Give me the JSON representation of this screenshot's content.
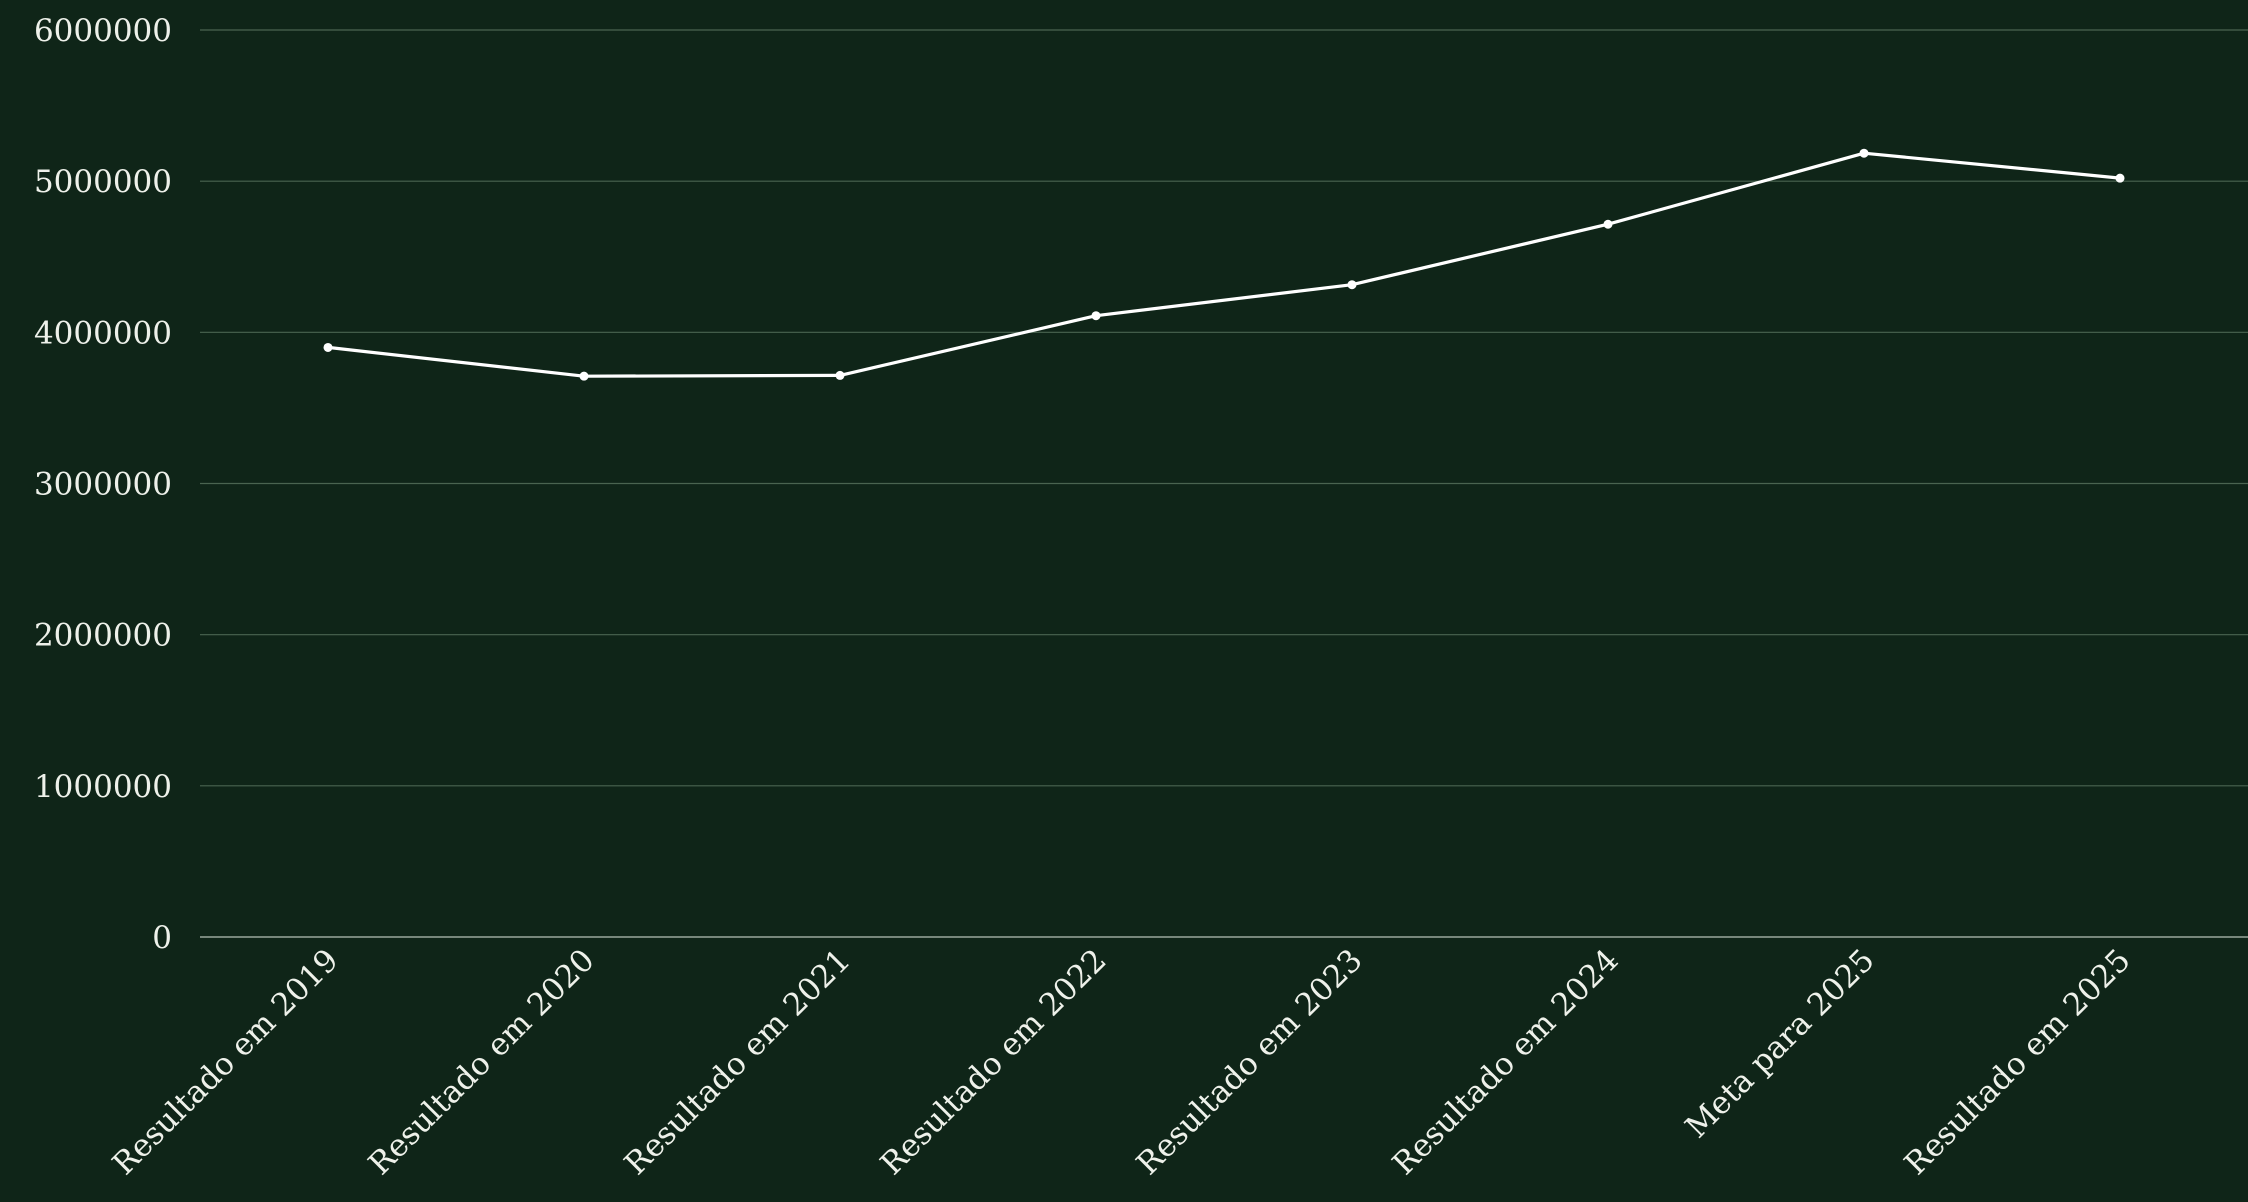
{
  "chart_data": {
    "type": "line",
    "title": "",
    "xlabel": "",
    "ylabel": "",
    "categories": [
      "Resultado em 2019",
      "Resultado em 2020",
      "Resultado em 2021",
      "Resultado em 2022",
      "Resultado em 2023",
      "Resultado em 2024",
      "Meta para 2025",
      "Resultado em 2025"
    ],
    "series": [
      {
        "values": [
          3900000,
          3710000,
          3715000,
          4110000,
          4315000,
          4715000,
          5185000,
          5020000
        ]
      }
    ],
    "ylim": [
      0,
      6000000
    ],
    "yticks": [
      "0",
      "1000000",
      "2000000",
      "3000000",
      "4000000",
      "5000000",
      "6000000"
    ],
    "grid": true,
    "legend": "none"
  },
  "colors": {
    "background": "#0f2518",
    "gridline": "#4a6450",
    "axis_line": "#9aa89c",
    "series_line": "#ffffff",
    "text": "#eef1ea"
  }
}
